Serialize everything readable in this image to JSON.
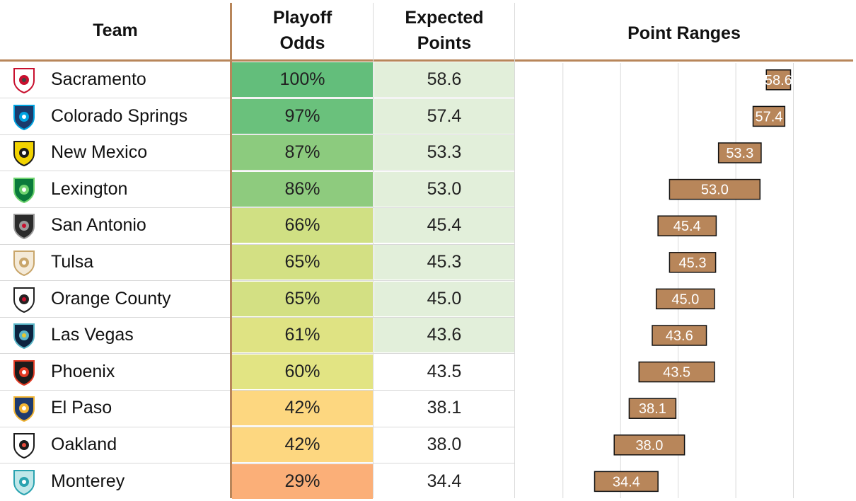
{
  "headers": {
    "team": "Team",
    "odds_line1": "Playoff",
    "odds_line2": "Odds",
    "points_line1": "Expected",
    "points_line2": "Points",
    "ranges": "Point Ranges"
  },
  "colors": {
    "accent": "#b8865a",
    "bar_fill": "#b8865a",
    "bar_stroke": "#111111",
    "points_highlight": "#e2efda"
  },
  "chart_data": {
    "type": "table",
    "columns": [
      "Team",
      "Playoff Odds",
      "Expected Points",
      "Point Ranges"
    ],
    "range_axis": {
      "xlim": [
        15,
        70
      ],
      "gridlines": [
        20,
        30,
        40,
        50,
        60
      ]
    },
    "rows": [
      {
        "team": "Sacramento",
        "logo": "sacramento-republic-icon",
        "odds": "100%",
        "odds_color": "#63be7b",
        "points": "58.6",
        "points_highlight": true,
        "range": [
          55.3,
          59.5
        ]
      },
      {
        "team": "Colorado Springs",
        "logo": "colorado-springs-switchbacks-icon",
        "odds": "97%",
        "odds_color": "#6ac17c",
        "points": "57.4",
        "points_highlight": true,
        "range": [
          53.0,
          58.5
        ]
      },
      {
        "team": "New Mexico",
        "logo": "new-mexico-united-icon",
        "odds": "87%",
        "odds_color": "#8ccb7e",
        "points": "53.3",
        "points_highlight": true,
        "range": [
          47.0,
          54.4
        ]
      },
      {
        "team": "Lexington",
        "logo": "lexington-sc-icon",
        "odds": "86%",
        "odds_color": "#8ecb7e",
        "points": "53.0",
        "points_highlight": true,
        "range": [
          38.5,
          54.2
        ]
      },
      {
        "team": "San Antonio",
        "logo": "san-antonio-fc-icon",
        "odds": "66%",
        "odds_color": "#d0e083",
        "points": "45.4",
        "points_highlight": true,
        "range": [
          36.5,
          46.6
        ]
      },
      {
        "team": "Tulsa",
        "logo": "fc-tulsa-icon",
        "odds": "65%",
        "odds_color": "#d3e083",
        "points": "45.3",
        "points_highlight": true,
        "range": [
          38.5,
          46.5
        ]
      },
      {
        "team": "Orange County",
        "logo": "orange-county-sc-icon",
        "odds": "65%",
        "odds_color": "#d3e083",
        "points": "45.0",
        "points_highlight": true,
        "range": [
          36.2,
          46.3
        ]
      },
      {
        "team": "Las Vegas",
        "logo": "las-vegas-lights-icon",
        "odds": "61%",
        "odds_color": "#dfe383",
        "points": "43.6",
        "points_highlight": true,
        "range": [
          35.5,
          44.9
        ]
      },
      {
        "team": "Phoenix",
        "logo": "phoenix-rising-icon",
        "odds": "60%",
        "odds_color": "#e2e483",
        "points": "43.5",
        "points_highlight": false,
        "range": [
          33.2,
          46.3
        ]
      },
      {
        "team": "El Paso",
        "logo": "el-paso-locomotive-icon",
        "odds": "42%",
        "odds_color": "#fdd780",
        "points": "38.1",
        "points_highlight": false,
        "range": [
          31.5,
          39.6
        ]
      },
      {
        "team": "Oakland",
        "logo": "oakland-roots-icon",
        "odds": "42%",
        "odds_color": "#fdd780",
        "points": "38.0",
        "points_highlight": false,
        "range": [
          28.9,
          41.1
        ]
      },
      {
        "team": "Monterey",
        "logo": "monterey-bay-fc-icon",
        "odds": "29%",
        "odds_color": "#fbaf78",
        "points": "34.4",
        "points_highlight": false,
        "range": [
          25.5,
          36.5
        ]
      }
    ]
  }
}
